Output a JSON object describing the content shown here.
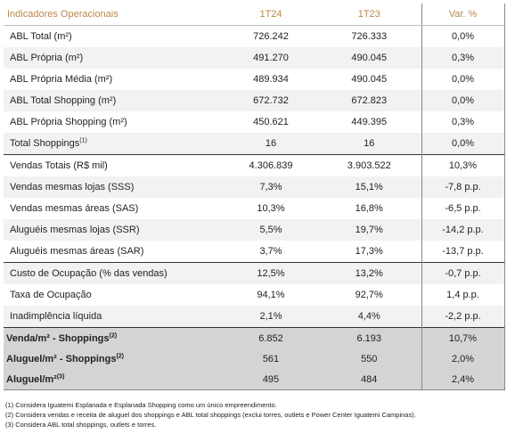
{
  "header": {
    "label": "Indicadores Operacionais",
    "col1": "1T24",
    "col2": "1T23",
    "col3": "Var. %"
  },
  "rows": [
    {
      "label": "ABL Total (m²)",
      "sup": "",
      "v1": "726.242",
      "v2": "726.333",
      "var": "0,0%"
    },
    {
      "label": "ABL Própria (m²)",
      "sup": "",
      "v1": "491.270",
      "v2": "490.045",
      "var": "0,3%"
    },
    {
      "label": "ABL Própria Média (m²)",
      "sup": "",
      "v1": "489.934",
      "v2": "490.045",
      "var": "0,0%"
    },
    {
      "label": "ABL Total Shopping (m²)",
      "sup": "",
      "v1": "672.732",
      "v2": "672.823",
      "var": "0,0%"
    },
    {
      "label": "ABL Própria Shopping (m²)",
      "sup": "",
      "v1": "450.621",
      "v2": "449.395",
      "var": "0,3%"
    },
    {
      "label": "Total Shoppings",
      "sup": "(1)",
      "v1": "16",
      "v2": "16",
      "var": "0,0%"
    },
    {
      "label": "Vendas Totais (R$ mil)",
      "sup": "",
      "v1": "4.306.839",
      "v2": "3.903.522",
      "var": "10,3%"
    },
    {
      "label": "Vendas mesmas lojas (SSS)",
      "sup": "",
      "v1": "7,3%",
      "v2": "15,1%",
      "var": "-7,8 p.p."
    },
    {
      "label": "Vendas mesmas áreas (SAS)",
      "sup": "",
      "v1": "10,3%",
      "v2": "16,8%",
      "var": "-6,5 p.p."
    },
    {
      "label": "Aluguéis mesmas lojas (SSR)",
      "sup": "",
      "v1": "5,5%",
      "v2": "19,7%",
      "var": "-14,2 p.p."
    },
    {
      "label": "Aluguéis mesmas áreas (SAR)",
      "sup": "",
      "v1": "3,7%",
      "v2": "17,3%",
      "var": "-13,7 p.p."
    },
    {
      "label": "Custo de Ocupação (% das vendas)",
      "sup": "",
      "v1": "12,5%",
      "v2": "13,2%",
      "var": "-0,7 p.p."
    },
    {
      "label": "Taxa de Ocupação",
      "sup": "",
      "v1": "94,1%",
      "v2": "92,7%",
      "var": "1,4 p.p."
    },
    {
      "label": "Inadimplência líquida",
      "sup": "",
      "v1": "2,1%",
      "v2": "4,4%",
      "var": "-2,2 p.p."
    }
  ],
  "totals": [
    {
      "label": "Venda/m²  - Shoppings",
      "sup": "(2)",
      "v1": "6.852",
      "v2": "6.193",
      "var": "10,7%"
    },
    {
      "label": "Aluguel/m²  - Shoppings",
      "sup": "(2)",
      "v1": "561",
      "v2": "550",
      "var": "2,0%"
    },
    {
      "label": "Aluguel/m²",
      "sup": "(3)",
      "v1": "495",
      "v2": "484",
      "var": "2,4%"
    }
  ],
  "footnotes": [
    "(1) Considera Iguatemi Esplanada e Esplanada Shopping como um único empreendimento.",
    "(2) Considera vendas e receita de aluguel dos shoppings e ABL total shoppings (exclui torres, outlets e Power Center Iguatemi Campinas).",
    "(3) Considera ABL total shoppings, outlets e torres."
  ]
}
